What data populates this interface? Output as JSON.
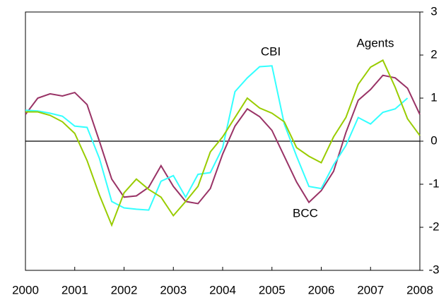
{
  "chart_data": {
    "type": "line",
    "x": [
      2000,
      2000.25,
      2000.5,
      2000.75,
      2001,
      2001.25,
      2001.5,
      2001.75,
      2002,
      2002.25,
      2002.5,
      2002.75,
      2003,
      2003.25,
      2003.5,
      2003.75,
      2004,
      2004.25,
      2004.5,
      2004.75,
      2005,
      2005.25,
      2005.5,
      2005.75,
      2006,
      2006.25,
      2006.5,
      2006.75,
      2007,
      2007.25,
      2007.5,
      2007.75,
      2008
    ],
    "series": [
      {
        "name": "BCC",
        "color": "#993366",
        "values": [
          0.62,
          1.0,
          1.1,
          1.05,
          1.13,
          0.85,
          0.0,
          -0.88,
          -1.3,
          -1.27,
          -1.07,
          -0.57,
          -1.05,
          -1.4,
          -1.45,
          -1.1,
          -0.3,
          0.35,
          0.75,
          0.57,
          0.25,
          -0.35,
          -0.95,
          -1.42,
          -1.15,
          -0.7,
          0.2,
          0.95,
          1.2,
          1.53,
          1.47,
          1.23,
          0.62
        ]
      },
      {
        "name": "CBI",
        "color": "#33ffff",
        "values": [
          0.72,
          0.7,
          0.65,
          0.58,
          0.35,
          0.32,
          -0.4,
          -1.4,
          -1.55,
          -1.58,
          -1.6,
          -0.93,
          -0.8,
          -1.3,
          -0.77,
          -0.73,
          -0.15,
          1.15,
          1.47,
          1.73,
          1.75,
          0.4,
          -0.35,
          -1.05,
          -1.1,
          -0.55,
          -0.1,
          0.55,
          0.4,
          0.67,
          0.75,
          1.0,
          null
        ]
      },
      {
        "name": "Agents",
        "color": "#99cc00",
        "values": [
          0.68,
          0.68,
          0.6,
          0.45,
          0.18,
          -0.45,
          -1.25,
          -1.95,
          -1.2,
          -0.88,
          -1.12,
          -1.3,
          -1.73,
          -1.4,
          -1.05,
          -0.25,
          0.1,
          0.55,
          1.0,
          0.77,
          0.65,
          0.45,
          -0.15,
          -0.35,
          -0.5,
          0.1,
          0.55,
          1.32,
          1.72,
          1.88,
          1.25,
          0.52,
          0.13
        ]
      }
    ],
    "xlim": [
      2000,
      2008
    ],
    "xticks": [
      2000,
      2001,
      2002,
      2003,
      2004,
      2005,
      2006,
      2007,
      2008
    ],
    "ylim": [
      -3,
      3
    ],
    "yticks": [
      -3,
      -2,
      -1,
      0,
      1,
      2,
      3
    ]
  }
}
